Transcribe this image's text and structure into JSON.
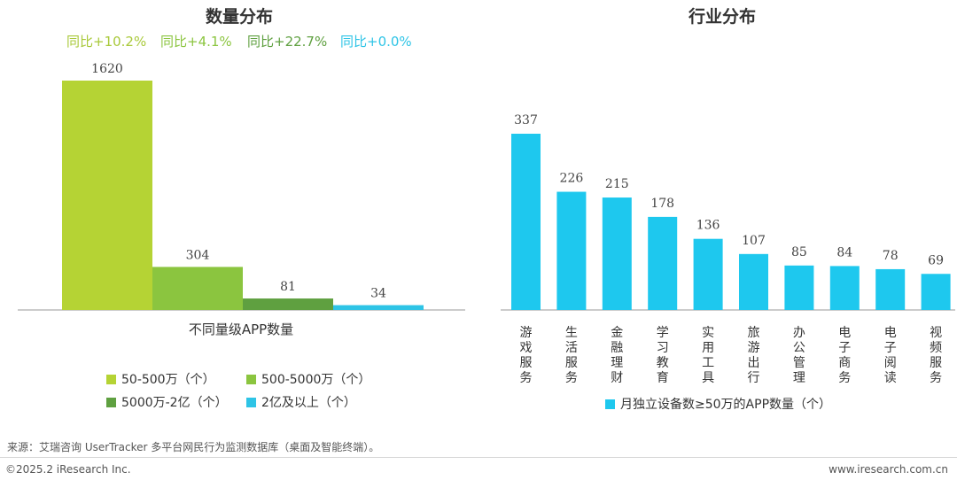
{
  "chart_data": [
    {
      "type": "bar",
      "title": "数量分布",
      "xlabel": "不同量级APP数量",
      "ylabel": "",
      "categories": [
        "50-500万（个）",
        "500-5000万（个）",
        "5000万-2亿（个）",
        "2亿及以上（个）"
      ],
      "values": [
        1620,
        304,
        81,
        34
      ],
      "yoy_labels": [
        "同比+10.2%",
        "同比+4.1%",
        "同比+22.7%",
        "同比+0.0%"
      ],
      "colors": [
        "#b5d334",
        "#8bc53f",
        "#5fa040",
        "#2ec4e6"
      ],
      "ylim": [
        0,
        1620
      ],
      "legend_position": "bottom",
      "grid": false
    },
    {
      "type": "bar",
      "title": "行业分布",
      "xlabel": "",
      "ylabel": "",
      "categories": [
        "游戏服务",
        "生活服务",
        "金融理财",
        "学习教育",
        "实用工具",
        "旅游出行",
        "办公管理",
        "电子商务",
        "电子阅读",
        "视频服务"
      ],
      "series": [
        {
          "name": "月独立设备数≥50万的APP数量（个）",
          "values": [
            337,
            226,
            215,
            178,
            136,
            107,
            85,
            84,
            78,
            69
          ]
        }
      ],
      "colors": [
        "#1ec8ee"
      ],
      "ylim": [
        0,
        337
      ],
      "legend_position": "bottom",
      "grid": false
    }
  ],
  "source": "来源：艾瑞咨询 UserTracker 多平台网民行为监测数据库（桌面及智能终端）。",
  "copyright": "©2025.2 iResearch Inc.",
  "website": "www.iresearch.com.cn"
}
